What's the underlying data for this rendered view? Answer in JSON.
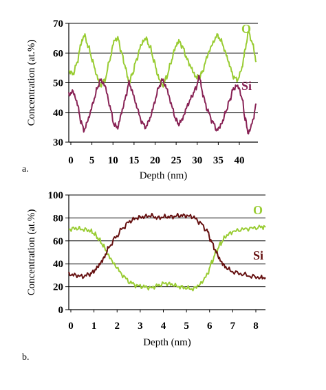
{
  "chart_data": [
    {
      "type": "line",
      "panel_label": "a.",
      "xlabel": "Depth (nm)",
      "ylabel": "Concentration (at.%)",
      "xlim": [
        0,
        44
      ],
      "ylim": [
        30,
        70
      ],
      "x_ticks": [
        "0",
        "5",
        "10",
        "15",
        "20",
        "25",
        "30",
        "35",
        "40"
      ],
      "y_ticks": [
        "30",
        "40",
        "50",
        "60",
        "70"
      ],
      "grid": "horizontal",
      "series": [
        {
          "name": "O",
          "color": "#99cc33",
          "x": [
            0,
            1,
            2,
            2.8,
            3.6,
            4.6,
            5.6,
            6.6,
            7.4,
            8.4,
            9.6,
            10.5,
            11.4,
            12.3,
            13.2,
            14,
            14.8,
            15.8,
            16.9,
            17.9,
            18.9,
            19.9,
            20.8,
            21.8,
            22.8,
            23.8,
            24.8,
            25.6,
            26.5,
            27.5,
            28.5,
            29.5,
            30.4,
            31.2,
            32.2,
            33.4,
            34.5,
            35.5,
            36.5,
            37.4,
            38.3,
            39.3,
            40.3,
            41,
            41.8,
            42.8,
            43.6
          ],
          "y": [
            54,
            53,
            57,
            63,
            66,
            62,
            57,
            52,
            49,
            51,
            58,
            64,
            65,
            60,
            55,
            50,
            53,
            58,
            63,
            65,
            62,
            57,
            52,
            49,
            52,
            57,
            62,
            64,
            62,
            58,
            55,
            52,
            52,
            54,
            59,
            63,
            66,
            64,
            60,
            56,
            52,
            51,
            55,
            61,
            67,
            63,
            57
          ]
        },
        {
          "name": "Si",
          "color": "#882255",
          "x": [
            0,
            1,
            2,
            2.8,
            3.6,
            4.6,
            5.6,
            6.6,
            7.4,
            8.4,
            9.6,
            10.5,
            11.4,
            12.3,
            13.2,
            14,
            14.8,
            15.8,
            16.9,
            17.9,
            18.9,
            19.9,
            20.8,
            21.8,
            22.8,
            23.8,
            24.8,
            25.6,
            26.5,
            27.5,
            28.5,
            29.5,
            30.4,
            31.2,
            32.2,
            33.4,
            34.5,
            35.5,
            36.5,
            37.4,
            38.3,
            39.3,
            40.3,
            41,
            41.8,
            42.8,
            43.6
          ],
          "y": [
            46,
            47,
            43,
            37,
            34,
            38,
            43,
            48,
            51,
            49,
            42,
            36,
            35,
            40,
            45,
            50,
            47,
            42,
            37,
            35,
            38,
            43,
            48,
            51,
            48,
            43,
            38,
            36,
            38,
            42,
            45,
            48,
            52,
            46,
            41,
            37,
            34,
            36,
            40,
            44,
            48,
            49,
            45,
            38,
            33,
            37,
            43
          ]
        }
      ]
    },
    {
      "type": "line",
      "panel_label": "b.",
      "xlabel": "Depth (nm)",
      "ylabel": "Concentration (at.%)",
      "xlim": [
        0,
        8.4
      ],
      "ylim": [
        0,
        100
      ],
      "x_ticks": [
        "0",
        "1",
        "2",
        "3",
        "4",
        "5",
        "6",
        "7",
        "8"
      ],
      "y_ticks": [
        "0",
        "20",
        "40",
        "60",
        "80",
        "100"
      ],
      "grid": "horizontal",
      "series": [
        {
          "name": "O",
          "color": "#99cc33",
          "x": [
            0,
            0.3,
            0.6,
            0.9,
            1.1,
            1.3,
            1.5,
            1.7,
            2.0,
            2.3,
            2.6,
            2.9,
            3.2,
            3.5,
            3.8,
            4.1,
            4.4,
            4.7,
            5.0,
            5.3,
            5.6,
            5.9,
            6.1,
            6.3,
            6.5,
            6.7,
            7.0,
            7.4,
            7.8,
            8.2,
            8.4
          ],
          "y": [
            70,
            71,
            70,
            69,
            66,
            61,
            55,
            47,
            38,
            30,
            24,
            21,
            20,
            19,
            21,
            23,
            22,
            20,
            19,
            18,
            22,
            30,
            41,
            51,
            58,
            64,
            68,
            70,
            71,
            72,
            72
          ]
        },
        {
          "name": "Si",
          "color": "#661111",
          "x": [
            0,
            0.3,
            0.6,
            0.9,
            1.1,
            1.3,
            1.5,
            1.7,
            2.0,
            2.3,
            2.6,
            2.9,
            3.2,
            3.5,
            3.8,
            4.1,
            4.4,
            4.7,
            5.0,
            5.3,
            5.6,
            5.9,
            6.1,
            6.3,
            6.5,
            6.7,
            7.0,
            7.4,
            7.8,
            8.2,
            8.4
          ],
          "y": [
            31,
            30,
            29,
            31,
            34,
            39,
            45,
            54,
            63,
            71,
            77,
            80,
            81,
            82,
            80,
            81,
            81,
            82,
            82,
            81,
            76,
            69,
            59,
            50,
            42,
            37,
            33,
            31,
            29,
            28,
            28
          ]
        }
      ]
    }
  ]
}
